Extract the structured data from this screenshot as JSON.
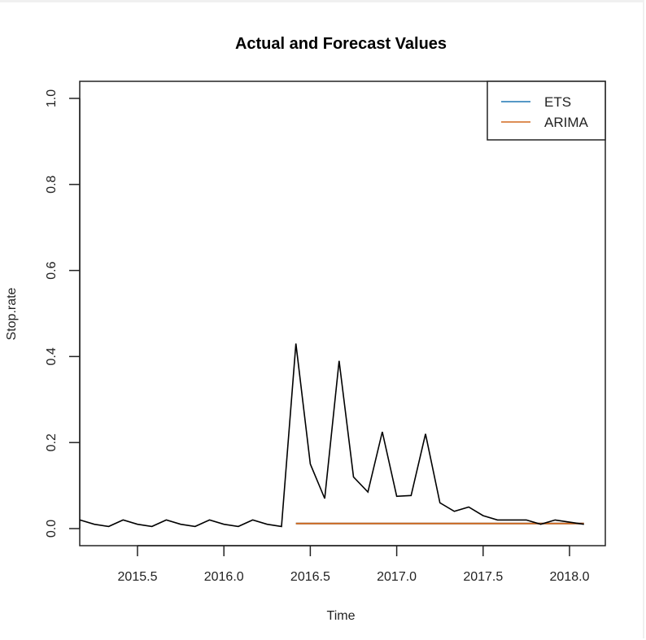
{
  "chart_data": {
    "type": "line",
    "title": "Actual and Forecast Values",
    "xlabel": "Time",
    "ylabel": "Stop.rate",
    "xlim": [
      2015.1,
      2018.2
    ],
    "ylim": [
      -0.04,
      1.04
    ],
    "x_ticks": [
      2015.5,
      2016.0,
      2016.5,
      2017.0,
      2017.5,
      2018.0
    ],
    "x_tick_labels": [
      "2015.5",
      "2016.0",
      "2016.5",
      "2017.0",
      "2017.5",
      "2018.0"
    ],
    "y_ticks": [
      0.0,
      0.2,
      0.4,
      0.6,
      0.8,
      1.0
    ],
    "y_tick_labels": [
      "0.0",
      "0.2",
      "0.4",
      "0.6",
      "0.8",
      "1.0"
    ],
    "grid": false,
    "legend_position": "top-right",
    "series": [
      {
        "name": "Actual",
        "color": "#000000",
        "in_legend": false,
        "x_start": 2015.1667,
        "x_step": 0.08333,
        "values": [
          0.02,
          0.01,
          0.005,
          0.02,
          0.01,
          0.005,
          0.02,
          0.01,
          0.005,
          0.02,
          0.01,
          0.005,
          0.02,
          0.01,
          0.005,
          0.43,
          0.15,
          0.07,
          0.39,
          0.12,
          0.085,
          0.225,
          0.075,
          0.077,
          0.22,
          0.06,
          0.04,
          0.05,
          0.03,
          0.02,
          0.02,
          0.02,
          0.01,
          0.02,
          0.015,
          0.01
        ]
      },
      {
        "name": "ETS",
        "color": "#1f77b4",
        "in_legend": true,
        "x_start": 2016.4167,
        "x_step": 0.08333,
        "values": [
          0.012,
          0.012,
          0.012,
          0.012,
          0.012,
          0.012,
          0.012,
          0.012,
          0.012,
          0.012,
          0.012,
          0.012,
          0.012,
          0.012,
          0.012,
          0.012,
          0.012,
          0.012,
          0.012,
          0.012,
          0.012
        ]
      },
      {
        "name": "ARIMA",
        "color": "#d2691e",
        "in_legend": true,
        "x_start": 2016.4167,
        "x_step": 0.08333,
        "values": [
          0.012,
          0.012,
          0.012,
          0.012,
          0.012,
          0.012,
          0.012,
          0.012,
          0.012,
          0.012,
          0.012,
          0.012,
          0.012,
          0.012,
          0.012,
          0.012,
          0.012,
          0.012,
          0.012,
          0.012,
          0.012
        ]
      }
    ]
  }
}
